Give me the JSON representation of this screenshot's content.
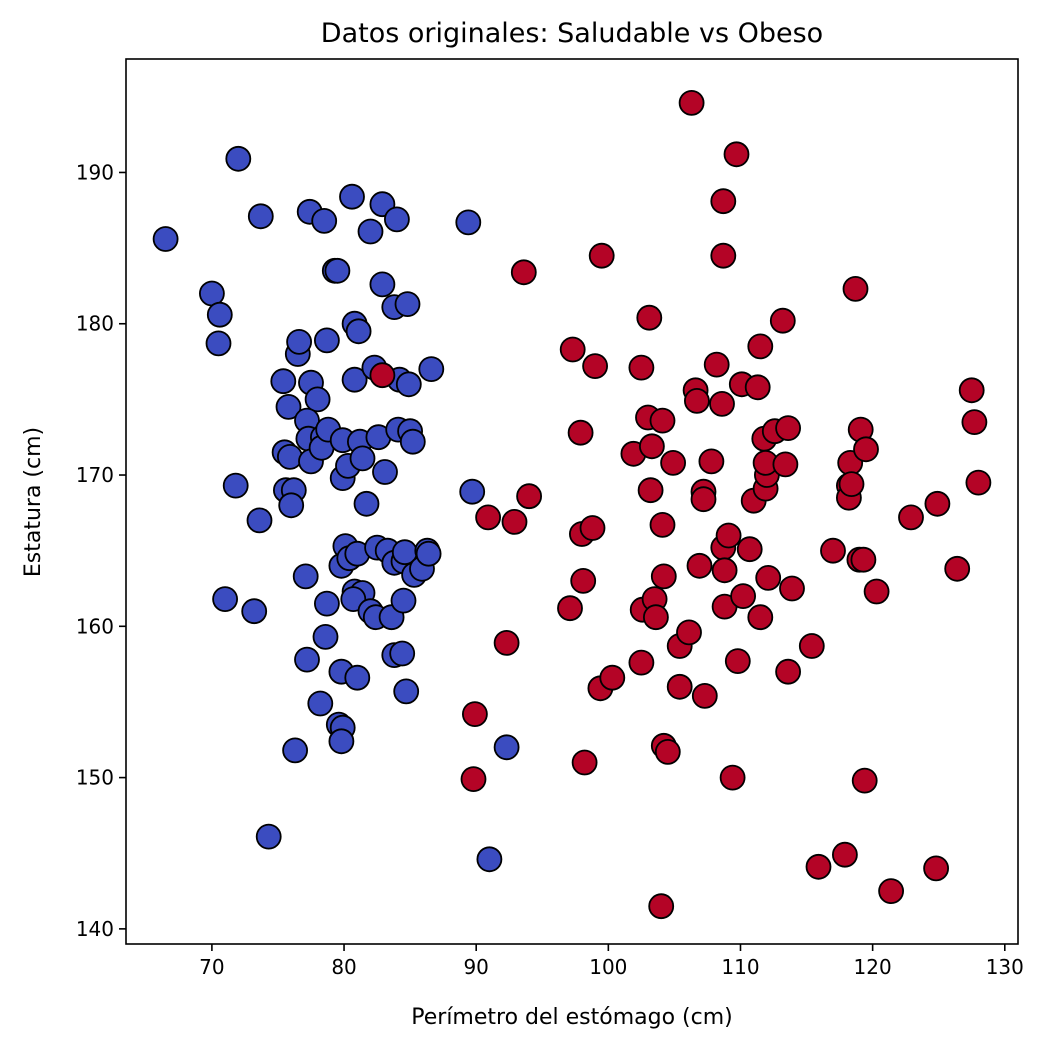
{
  "chart_data": {
    "type": "scatter",
    "title": "Datos originales: Saludable vs Obeso",
    "xlabel": "Perímetro del estómago (cm)",
    "ylabel": "Estatura (cm)",
    "xlim": [
      63.5,
      131
    ],
    "ylim": [
      139,
      197.5
    ],
    "xticks": [
      70,
      80,
      90,
      100,
      110,
      120,
      130
    ],
    "yticks": [
      140,
      150,
      160,
      170,
      180,
      190
    ],
    "grid": false,
    "colors": {
      "blue": "#3b4cc0",
      "red": "#b40426",
      "edge": "#000000"
    },
    "series": [
      {
        "color": "#3b4cc0",
        "points": [
          [
            66.5,
            185.6
          ],
          [
            72.0,
            190.9
          ],
          [
            73.7,
            187.1
          ],
          [
            70.0,
            182.0
          ],
          [
            70.6,
            180.6
          ],
          [
            70.5,
            178.7
          ],
          [
            71.8,
            169.3
          ],
          [
            73.6,
            167.0
          ],
          [
            71.0,
            161.8
          ],
          [
            73.2,
            161.0
          ],
          [
            74.3,
            146.1
          ],
          [
            75.4,
            176.2
          ],
          [
            75.8,
            174.5
          ],
          [
            75.5,
            171.5
          ],
          [
            75.9,
            171.2
          ],
          [
            75.6,
            169.0
          ],
          [
            76.2,
            169.0
          ],
          [
            76.0,
            168.0
          ],
          [
            76.3,
            151.8
          ],
          [
            76.5,
            178.0
          ],
          [
            76.6,
            178.8
          ],
          [
            77.4,
            187.4
          ],
          [
            78.5,
            186.8
          ],
          [
            77.5,
            176.1
          ],
          [
            78.0,
            175.0
          ],
          [
            77.2,
            173.6
          ],
          [
            77.3,
            172.4
          ],
          [
            77.5,
            170.9
          ],
          [
            77.1,
            163.3
          ],
          [
            77.2,
            157.8
          ],
          [
            78.2,
            154.9
          ],
          [
            78.7,
            178.9
          ],
          [
            78.4,
            172.5
          ],
          [
            78.3,
            171.8
          ],
          [
            78.8,
            173.0
          ],
          [
            78.7,
            161.5
          ],
          [
            78.6,
            159.3
          ],
          [
            79.3,
            183.5
          ],
          [
            79.5,
            183.5
          ],
          [
            79.9,
            172.3
          ],
          [
            79.9,
            169.8
          ],
          [
            80.3,
            170.6
          ],
          [
            80.1,
            165.3
          ],
          [
            79.8,
            164.0
          ],
          [
            80.4,
            164.5
          ],
          [
            79.8,
            157.0
          ],
          [
            79.6,
            153.5
          ],
          [
            79.9,
            153.3
          ],
          [
            79.8,
            152.4
          ],
          [
            80.6,
            188.4
          ],
          [
            80.8,
            180.0
          ],
          [
            81.1,
            179.5
          ],
          [
            80.8,
            176.3
          ],
          [
            81.2,
            172.2
          ],
          [
            81.4,
            171.1
          ],
          [
            81.7,
            168.1
          ],
          [
            81.0,
            164.8
          ],
          [
            80.8,
            162.3
          ],
          [
            81.4,
            162.2
          ],
          [
            80.7,
            161.8
          ],
          [
            81.0,
            156.6
          ],
          [
            82.0,
            186.1
          ],
          [
            82.3,
            177.1
          ],
          [
            82.6,
            172.5
          ],
          [
            82.5,
            165.2
          ],
          [
            82.0,
            161.0
          ],
          [
            82.4,
            160.6
          ],
          [
            82.9,
            182.6
          ],
          [
            82.9,
            187.9
          ],
          [
            83.1,
            170.2
          ],
          [
            83.3,
            165.0
          ],
          [
            83.8,
            164.2
          ],
          [
            83.6,
            160.6
          ],
          [
            83.8,
            158.1
          ],
          [
            84.0,
            186.9
          ],
          [
            83.8,
            181.1
          ],
          [
            84.2,
            176.3
          ],
          [
            84.1,
            173.0
          ],
          [
            84.4,
            158.2
          ],
          [
            84.5,
            164.3
          ],
          [
            84.6,
            164.9
          ],
          [
            84.5,
            161.7
          ],
          [
            84.7,
            155.7
          ],
          [
            84.8,
            181.3
          ],
          [
            84.9,
            176.0
          ],
          [
            85.0,
            172.9
          ],
          [
            85.2,
            172.2
          ],
          [
            85.3,
            163.4
          ],
          [
            85.9,
            163.8
          ],
          [
            86.3,
            165.0
          ],
          [
            86.4,
            164.8
          ],
          [
            86.6,
            177.0
          ],
          [
            89.4,
            186.7
          ],
          [
            89.7,
            168.9
          ],
          [
            92.3,
            152.0
          ],
          [
            91.0,
            144.6
          ]
        ]
      },
      {
        "color": "#b40426",
        "points": [
          [
            82.9,
            176.6
          ],
          [
            89.8,
            149.9
          ],
          [
            89.9,
            154.2
          ],
          [
            90.9,
            167.2
          ],
          [
            92.3,
            158.9
          ],
          [
            92.9,
            166.9
          ],
          [
            93.6,
            183.4
          ],
          [
            94.0,
            168.6
          ],
          [
            97.1,
            161.2
          ],
          [
            97.3,
            178.3
          ],
          [
            97.9,
            172.8
          ],
          [
            98.0,
            166.1
          ],
          [
            98.1,
            163.0
          ],
          [
            98.2,
            151.0
          ],
          [
            98.8,
            166.5
          ],
          [
            99.0,
            177.2
          ],
          [
            99.5,
            184.5
          ],
          [
            99.4,
            155.9
          ],
          [
            100.3,
            156.6
          ],
          [
            101.9,
            171.4
          ],
          [
            102.5,
            177.1
          ],
          [
            102.5,
            157.6
          ],
          [
            102.6,
            161.1
          ],
          [
            103.1,
            180.4
          ],
          [
            103.0,
            173.8
          ],
          [
            103.3,
            171.9
          ],
          [
            103.2,
            169.0
          ],
          [
            103.5,
            161.8
          ],
          [
            103.6,
            160.6
          ],
          [
            104.0,
            141.5
          ],
          [
            104.1,
            173.6
          ],
          [
            104.1,
            166.7
          ],
          [
            104.2,
            163.3
          ],
          [
            104.2,
            152.1
          ],
          [
            104.5,
            151.7
          ],
          [
            104.9,
            170.8
          ],
          [
            105.4,
            158.7
          ],
          [
            105.4,
            156.0
          ],
          [
            106.1,
            159.6
          ],
          [
            106.3,
            194.6
          ],
          [
            106.6,
            175.6
          ],
          [
            106.7,
            174.9
          ],
          [
            106.9,
            164.0
          ],
          [
            107.2,
            168.9
          ],
          [
            107.2,
            168.4
          ],
          [
            107.3,
            155.4
          ],
          [
            107.8,
            170.9
          ],
          [
            108.2,
            177.3
          ],
          [
            108.6,
            174.7
          ],
          [
            108.7,
            188.1
          ],
          [
            108.7,
            184.5
          ],
          [
            108.7,
            165.2
          ],
          [
            108.8,
            163.7
          ],
          [
            108.8,
            161.3
          ],
          [
            109.1,
            166.0
          ],
          [
            109.4,
            150.0
          ],
          [
            109.7,
            191.2
          ],
          [
            109.8,
            157.7
          ],
          [
            110.1,
            176.0
          ],
          [
            110.2,
            162.0
          ],
          [
            110.7,
            165.1
          ],
          [
            111.0,
            168.3
          ],
          [
            111.3,
            175.8
          ],
          [
            111.5,
            178.5
          ],
          [
            111.5,
            160.6
          ],
          [
            111.8,
            172.4
          ],
          [
            111.9,
            169.1
          ],
          [
            112.0,
            170.0
          ],
          [
            111.9,
            170.8
          ],
          [
            112.1,
            163.2
          ],
          [
            112.6,
            172.9
          ],
          [
            113.2,
            180.2
          ],
          [
            113.4,
            170.7
          ],
          [
            113.6,
            173.1
          ],
          [
            113.6,
            157.0
          ],
          [
            113.9,
            162.5
          ],
          [
            115.4,
            158.7
          ],
          [
            115.9,
            144.1
          ],
          [
            117.0,
            165.0
          ],
          [
            117.9,
            144.9
          ],
          [
            118.3,
            170.8
          ],
          [
            118.2,
            169.3
          ],
          [
            118.2,
            168.5
          ],
          [
            118.4,
            169.4
          ],
          [
            118.7,
            182.3
          ],
          [
            119.0,
            164.4
          ],
          [
            119.1,
            173.0
          ],
          [
            119.5,
            171.7
          ],
          [
            119.3,
            164.4
          ],
          [
            119.4,
            149.8
          ],
          [
            120.3,
            162.3
          ],
          [
            121.4,
            142.5
          ],
          [
            122.9,
            167.2
          ],
          [
            124.8,
            144.0
          ],
          [
            124.9,
            168.1
          ],
          [
            126.4,
            163.8
          ],
          [
            127.5,
            175.6
          ],
          [
            127.7,
            173.5
          ],
          [
            128.0,
            169.5
          ]
        ]
      }
    ]
  }
}
